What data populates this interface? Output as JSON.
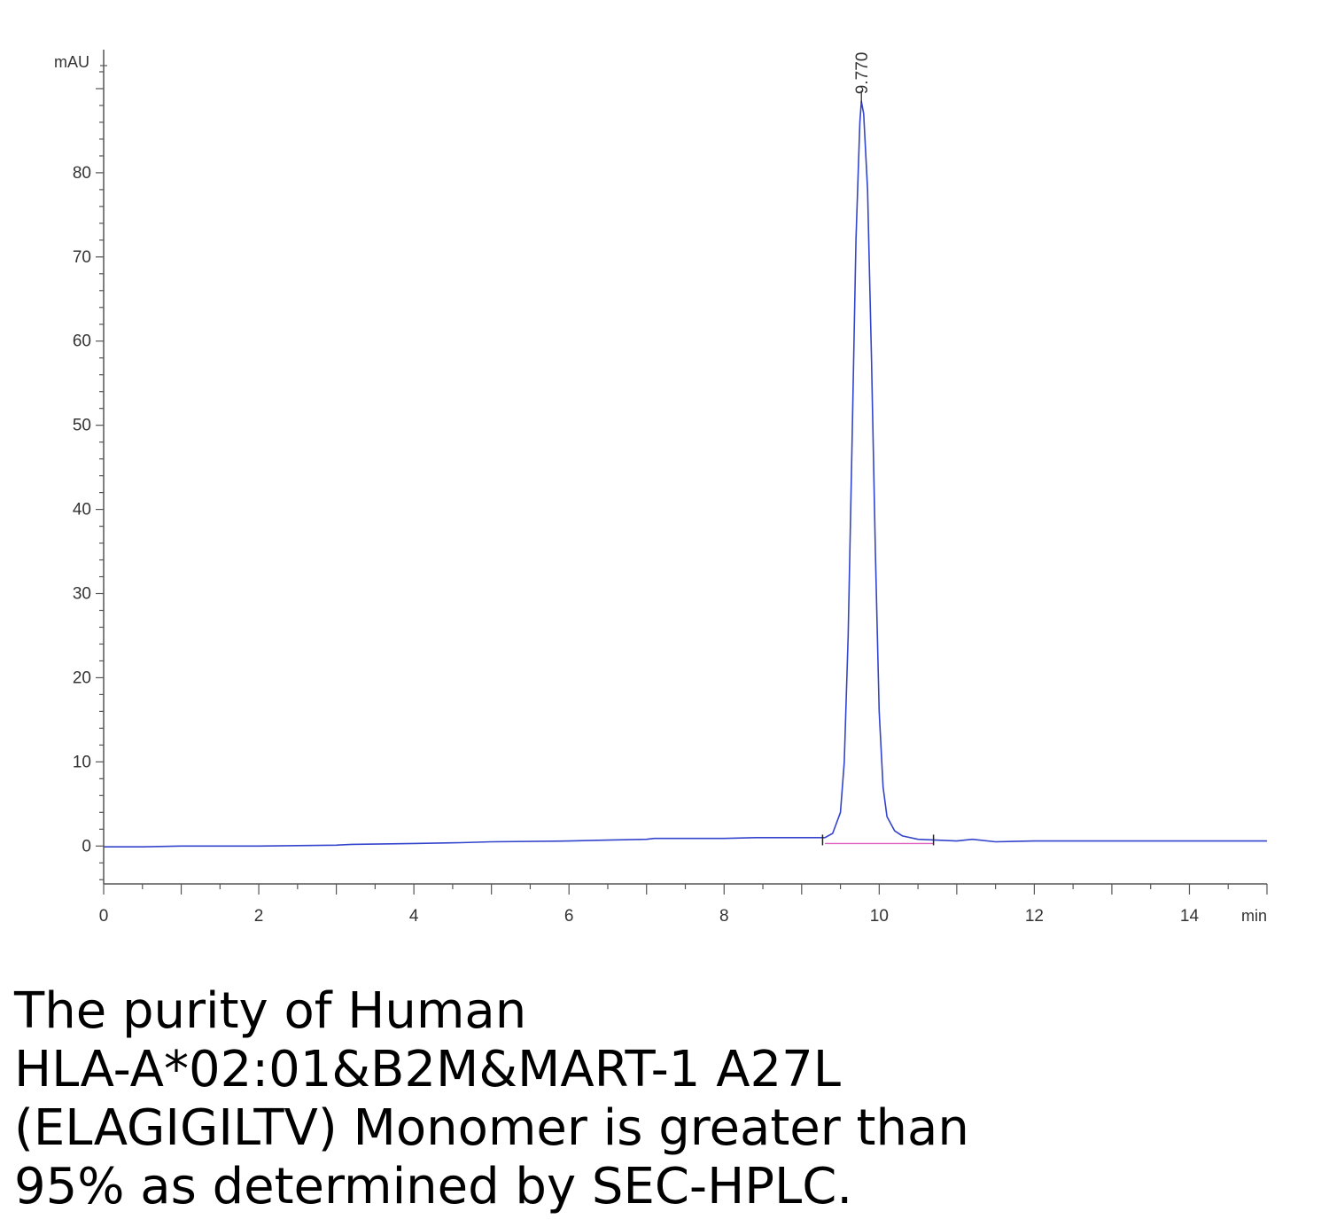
{
  "chart_data": {
    "type": "line",
    "title": "",
    "xlabel": "",
    "ylabel": "",
    "x_unit_label": "min",
    "y_unit_label": "mAU",
    "xlim": [
      0,
      15
    ],
    "ylim": [
      -4.5,
      94
    ],
    "x_ticks": [
      0,
      2,
      4,
      6,
      8,
      10,
      12,
      14
    ],
    "y_ticks": [
      0,
      10,
      20,
      30,
      40,
      50,
      60,
      70,
      80
    ],
    "grid": false,
    "legend": "none",
    "series": [
      {
        "color": "#3344cc",
        "x": [
          0,
          0.5,
          1,
          2,
          3,
          3.2,
          4,
          4.6,
          5,
          6,
          6.5,
          7,
          7.1,
          8,
          8.4,
          9,
          9.3,
          9.4,
          9.5,
          9.55,
          9.6,
          9.65,
          9.7,
          9.75,
          9.77,
          9.8,
          9.85,
          9.9,
          9.95,
          10.0,
          10.05,
          10.1,
          10.2,
          10.3,
          10.5,
          11,
          11.2,
          11.5,
          12,
          13,
          14,
          15
        ],
        "y": [
          -0.1,
          -0.1,
          0,
          0,
          0.1,
          0.2,
          0.3,
          0.4,
          0.5,
          0.6,
          0.7,
          0.8,
          0.9,
          0.9,
          1.0,
          1.0,
          1.0,
          1.5,
          4.0,
          10.0,
          25.0,
          48.0,
          72.0,
          86.0,
          88.5,
          87.0,
          78.0,
          58.0,
          35.0,
          16.0,
          7.0,
          3.5,
          1.8,
          1.2,
          0.8,
          0.6,
          0.8,
          0.5,
          0.6,
          0.6,
          0.6,
          0.6
        ]
      },
      {
        "color": "#e060c0",
        "x": [
          9.3,
          10.7
        ],
        "y": [
          0.3,
          0.3
        ]
      }
    ],
    "annotations": [
      {
        "text": "9.770",
        "x": 9.77,
        "y": 88.5
      }
    ],
    "integration_marks": [
      9.27,
      10.7
    ]
  },
  "caption_lines": [
    "The purity of Human",
    "HLA-A*02:01&B2M&MART-1 A27L",
    "(ELAGIGILTV) Monomer is greater than",
    "95% as determined by SEC-HPLC."
  ]
}
